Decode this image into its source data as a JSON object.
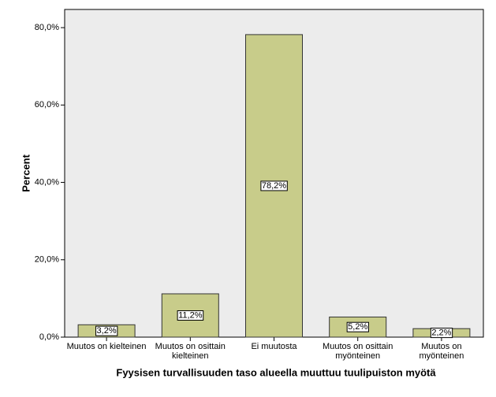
{
  "chart_data": {
    "type": "bar",
    "categories": [
      "Muutos on kielteinen",
      "Muutos on osittain\nkielteinen",
      "Ei muutosta",
      "Muutos on osittain\nmyönteinen",
      "Muutos on\nmyönteinen"
    ],
    "values": [
      3.2,
      11.2,
      78.2,
      5.2,
      2.2
    ],
    "value_labels": [
      "3,2%",
      "11,2%",
      "78,2%",
      "5,2%",
      "2,2%"
    ],
    "color": "#c8cc8a",
    "ylim": [
      0,
      84.7
    ],
    "yticks": [
      {
        "value": 0,
        "label": "0,0%"
      },
      {
        "value": 20,
        "label": "20,0%"
      },
      {
        "value": 40,
        "label": "40,0%"
      },
      {
        "value": 60,
        "label": "60,0%"
      },
      {
        "value": 80,
        "label": "80,0%"
      }
    ],
    "y_label": "Percent",
    "x_label": "Fyysisen turvallisuuden taso alueella muuttuu tuulipuiston myötä"
  }
}
